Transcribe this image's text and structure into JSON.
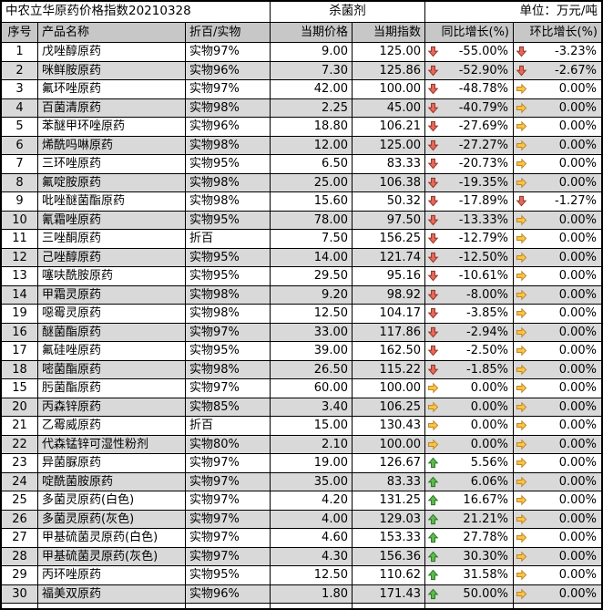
{
  "title": {
    "left": "中农立华原药价格指数20210328",
    "center": "杀菌剂",
    "right": "单位：万元/吨"
  },
  "columns": [
    {
      "key": "no",
      "label": "序号"
    },
    {
      "key": "name",
      "label": "产品名称"
    },
    {
      "key": "spec",
      "label": "折百/实物"
    },
    {
      "key": "price",
      "label": "当期价格"
    },
    {
      "key": "index",
      "label": "当期指数"
    },
    {
      "key": "yoy",
      "label": "同比增长(%)"
    },
    {
      "key": "mom",
      "label": "环比增长(%)"
    }
  ],
  "icons": {
    "down": {
      "name": "down-arrow-icon",
      "fill": "#E8695B",
      "stroke": "#96392C"
    },
    "flat": {
      "name": "right-arrow-icon",
      "fill": "#FFC645",
      "stroke": "#C08A2D"
    },
    "up": {
      "name": "up-arrow-icon",
      "fill": "#5FBB4E",
      "stroke": "#2F7A28"
    }
  },
  "colors": {
    "header_bg": "#c7c7c7",
    "alt_row_bg": "#d9d9d9",
    "grid_line": "#000000",
    "down_arrow": "#E8695B",
    "flat_arrow": "#FFC645",
    "up_arrow": "#5FBB4E"
  },
  "rows": [
    {
      "no": "1",
      "name": "戊唑醇原药",
      "spec": "实物97%",
      "price": "9.00",
      "index": "125.00",
      "yoy": {
        "dir": "down",
        "value": "-55.00%"
      },
      "mom": {
        "dir": "down",
        "value": "-3.23%"
      }
    },
    {
      "no": "2",
      "name": "咪鲜胺原药",
      "spec": "实物96%",
      "price": "7.30",
      "index": "125.86",
      "yoy": {
        "dir": "down",
        "value": "-52.90%"
      },
      "mom": {
        "dir": "down",
        "value": "-2.67%"
      }
    },
    {
      "no": "3",
      "name": "氟环唑原药",
      "spec": "实物97%",
      "price": "42.00",
      "index": "100.00",
      "yoy": {
        "dir": "down",
        "value": "-48.78%"
      },
      "mom": {
        "dir": "flat",
        "value": "0.00%"
      }
    },
    {
      "no": "4",
      "name": "百菌清原药",
      "spec": "实物98%",
      "price": "2.25",
      "index": "45.00",
      "yoy": {
        "dir": "down",
        "value": "-40.79%"
      },
      "mom": {
        "dir": "flat",
        "value": "0.00%"
      }
    },
    {
      "no": "5",
      "name": "苯醚甲环唑原药",
      "spec": "实物96%",
      "price": "18.80",
      "index": "106.21",
      "yoy": {
        "dir": "down",
        "value": "-27.69%"
      },
      "mom": {
        "dir": "flat",
        "value": "0.00%"
      }
    },
    {
      "no": "6",
      "name": "烯酰吗啉原药",
      "spec": "实物98%",
      "price": "12.00",
      "index": "125.00",
      "yoy": {
        "dir": "down",
        "value": "-27.27%"
      },
      "mom": {
        "dir": "flat",
        "value": "0.00%"
      }
    },
    {
      "no": "7",
      "name": "三环唑原药",
      "spec": "实物95%",
      "price": "6.50",
      "index": "83.33",
      "yoy": {
        "dir": "down",
        "value": "-20.73%"
      },
      "mom": {
        "dir": "flat",
        "value": "0.00%"
      }
    },
    {
      "no": "8",
      "name": "氟啶胺原药",
      "spec": "实物98%",
      "price": "25.00",
      "index": "106.38",
      "yoy": {
        "dir": "down",
        "value": "-19.35%"
      },
      "mom": {
        "dir": "flat",
        "value": "0.00%"
      }
    },
    {
      "no": "9",
      "name": "吡唑醚菌酯原药",
      "spec": "实物98%",
      "price": "15.60",
      "index": "50.32",
      "yoy": {
        "dir": "down",
        "value": "-17.89%"
      },
      "mom": {
        "dir": "down",
        "value": "-1.27%"
      }
    },
    {
      "no": "10",
      "name": "氰霜唑原药",
      "spec": "实物95%",
      "price": "78.00",
      "index": "97.50",
      "yoy": {
        "dir": "down",
        "value": "-13.33%"
      },
      "mom": {
        "dir": "flat",
        "value": "0.00%"
      }
    },
    {
      "no": "11",
      "name": "三唑酮原药",
      "spec": "折百",
      "price": "7.50",
      "index": "156.25",
      "yoy": {
        "dir": "down",
        "value": "-12.79%"
      },
      "mom": {
        "dir": "flat",
        "value": "0.00%"
      }
    },
    {
      "no": "12",
      "name": "己唑醇原药",
      "spec": "实物95%",
      "price": "14.00",
      "index": "121.74",
      "yoy": {
        "dir": "down",
        "value": "-12.50%"
      },
      "mom": {
        "dir": "flat",
        "value": "0.00%"
      }
    },
    {
      "no": "13",
      "name": "噻呋酰胺原药",
      "spec": "实物95%",
      "price": "29.50",
      "index": "95.16",
      "yoy": {
        "dir": "down",
        "value": "-10.61%"
      },
      "mom": {
        "dir": "flat",
        "value": "0.00%"
      }
    },
    {
      "no": "14",
      "name": "甲霜灵原药",
      "spec": "实物98%",
      "price": "9.20",
      "index": "98.92",
      "yoy": {
        "dir": "down",
        "value": "-8.00%"
      },
      "mom": {
        "dir": "flat",
        "value": "0.00%"
      }
    },
    {
      "no": "19",
      "name": "噁霉灵原药",
      "spec": "实物98%",
      "price": "12.50",
      "index": "104.17",
      "yoy": {
        "dir": "down",
        "value": "-3.85%"
      },
      "mom": {
        "dir": "flat",
        "value": "0.00%"
      }
    },
    {
      "no": "16",
      "name": "醚菌酯原药",
      "spec": "实物97%",
      "price": "33.00",
      "index": "117.86",
      "yoy": {
        "dir": "down",
        "value": "-2.94%"
      },
      "mom": {
        "dir": "flat",
        "value": "0.00%"
      }
    },
    {
      "no": "17",
      "name": "氟硅唑原药",
      "spec": "实物95%",
      "price": "39.00",
      "index": "162.50",
      "yoy": {
        "dir": "down",
        "value": "-2.50%"
      },
      "mom": {
        "dir": "flat",
        "value": "0.00%"
      }
    },
    {
      "no": "18",
      "name": "嘧菌酯原药",
      "spec": "实物98%",
      "price": "26.50",
      "index": "115.22",
      "yoy": {
        "dir": "down",
        "value": "-1.85%"
      },
      "mom": {
        "dir": "flat",
        "value": "0.00%"
      }
    },
    {
      "no": "15",
      "name": "肟菌酯原药",
      "spec": "实物97%",
      "price": "60.00",
      "index": "100.00",
      "yoy": {
        "dir": "flat",
        "value": "0.00%"
      },
      "mom": {
        "dir": "flat",
        "value": "0.00%"
      }
    },
    {
      "no": "20",
      "name": "丙森锌原药",
      "spec": "实物85%",
      "price": "3.40",
      "index": "106.25",
      "yoy": {
        "dir": "flat",
        "value": "0.00%"
      },
      "mom": {
        "dir": "flat",
        "value": "0.00%"
      }
    },
    {
      "no": "21",
      "name": "乙霉威原药",
      "spec": "折百",
      "price": "15.00",
      "index": "130.43",
      "yoy": {
        "dir": "flat",
        "value": "0.00%"
      },
      "mom": {
        "dir": "flat",
        "value": "0.00%"
      }
    },
    {
      "no": "22",
      "name": "代森锰锌可湿性粉剂",
      "spec": "实物80%",
      "price": "2.10",
      "index": "100.00",
      "yoy": {
        "dir": "flat",
        "value": "0.00%"
      },
      "mom": {
        "dir": "flat",
        "value": "0.00%"
      }
    },
    {
      "no": "23",
      "name": "异菌脲原药",
      "spec": "实物97%",
      "price": "19.00",
      "index": "126.67",
      "yoy": {
        "dir": "up",
        "value": "5.56%"
      },
      "mom": {
        "dir": "flat",
        "value": "0.00%"
      }
    },
    {
      "no": "24",
      "name": "啶酰菌胺原药",
      "spec": "实物97%",
      "price": "35.00",
      "index": "83.33",
      "yoy": {
        "dir": "up",
        "value": "6.06%"
      },
      "mom": {
        "dir": "flat",
        "value": "0.00%"
      }
    },
    {
      "no": "25",
      "name": "多菌灵原药(白色)",
      "spec": "实物97%",
      "price": "4.20",
      "index": "131.25",
      "yoy": {
        "dir": "up",
        "value": "16.67%"
      },
      "mom": {
        "dir": "flat",
        "value": "0.00%"
      }
    },
    {
      "no": "26",
      "name": "多菌灵原药(灰色)",
      "spec": "实物97%",
      "price": "4.00",
      "index": "129.03",
      "yoy": {
        "dir": "up",
        "value": "21.21%"
      },
      "mom": {
        "dir": "flat",
        "value": "0.00%"
      }
    },
    {
      "no": "27",
      "name": "甲基硫菌灵原药(白色)",
      "spec": "实物97%",
      "price": "4.60",
      "index": "153.33",
      "yoy": {
        "dir": "up",
        "value": "27.78%"
      },
      "mom": {
        "dir": "flat",
        "value": "0.00%"
      }
    },
    {
      "no": "28",
      "name": "甲基硫菌灵原药(灰色)",
      "spec": "实物97%",
      "price": "4.30",
      "index": "156.36",
      "yoy": {
        "dir": "up",
        "value": "30.30%"
      },
      "mom": {
        "dir": "flat",
        "value": "0.00%"
      }
    },
    {
      "no": "29",
      "name": "丙环唑原药",
      "spec": "实物95%",
      "price": "12.50",
      "index": "110.62",
      "yoy": {
        "dir": "up",
        "value": "31.58%"
      },
      "mom": {
        "dir": "flat",
        "value": "0.00%"
      }
    },
    {
      "no": "30",
      "name": "福美双原药",
      "spec": "实物96%",
      "price": "1.80",
      "index": "171.43",
      "yoy": {
        "dir": "up",
        "value": "50.00%"
      },
      "mom": {
        "dir": "flat",
        "value": "0.00%"
      }
    }
  ]
}
